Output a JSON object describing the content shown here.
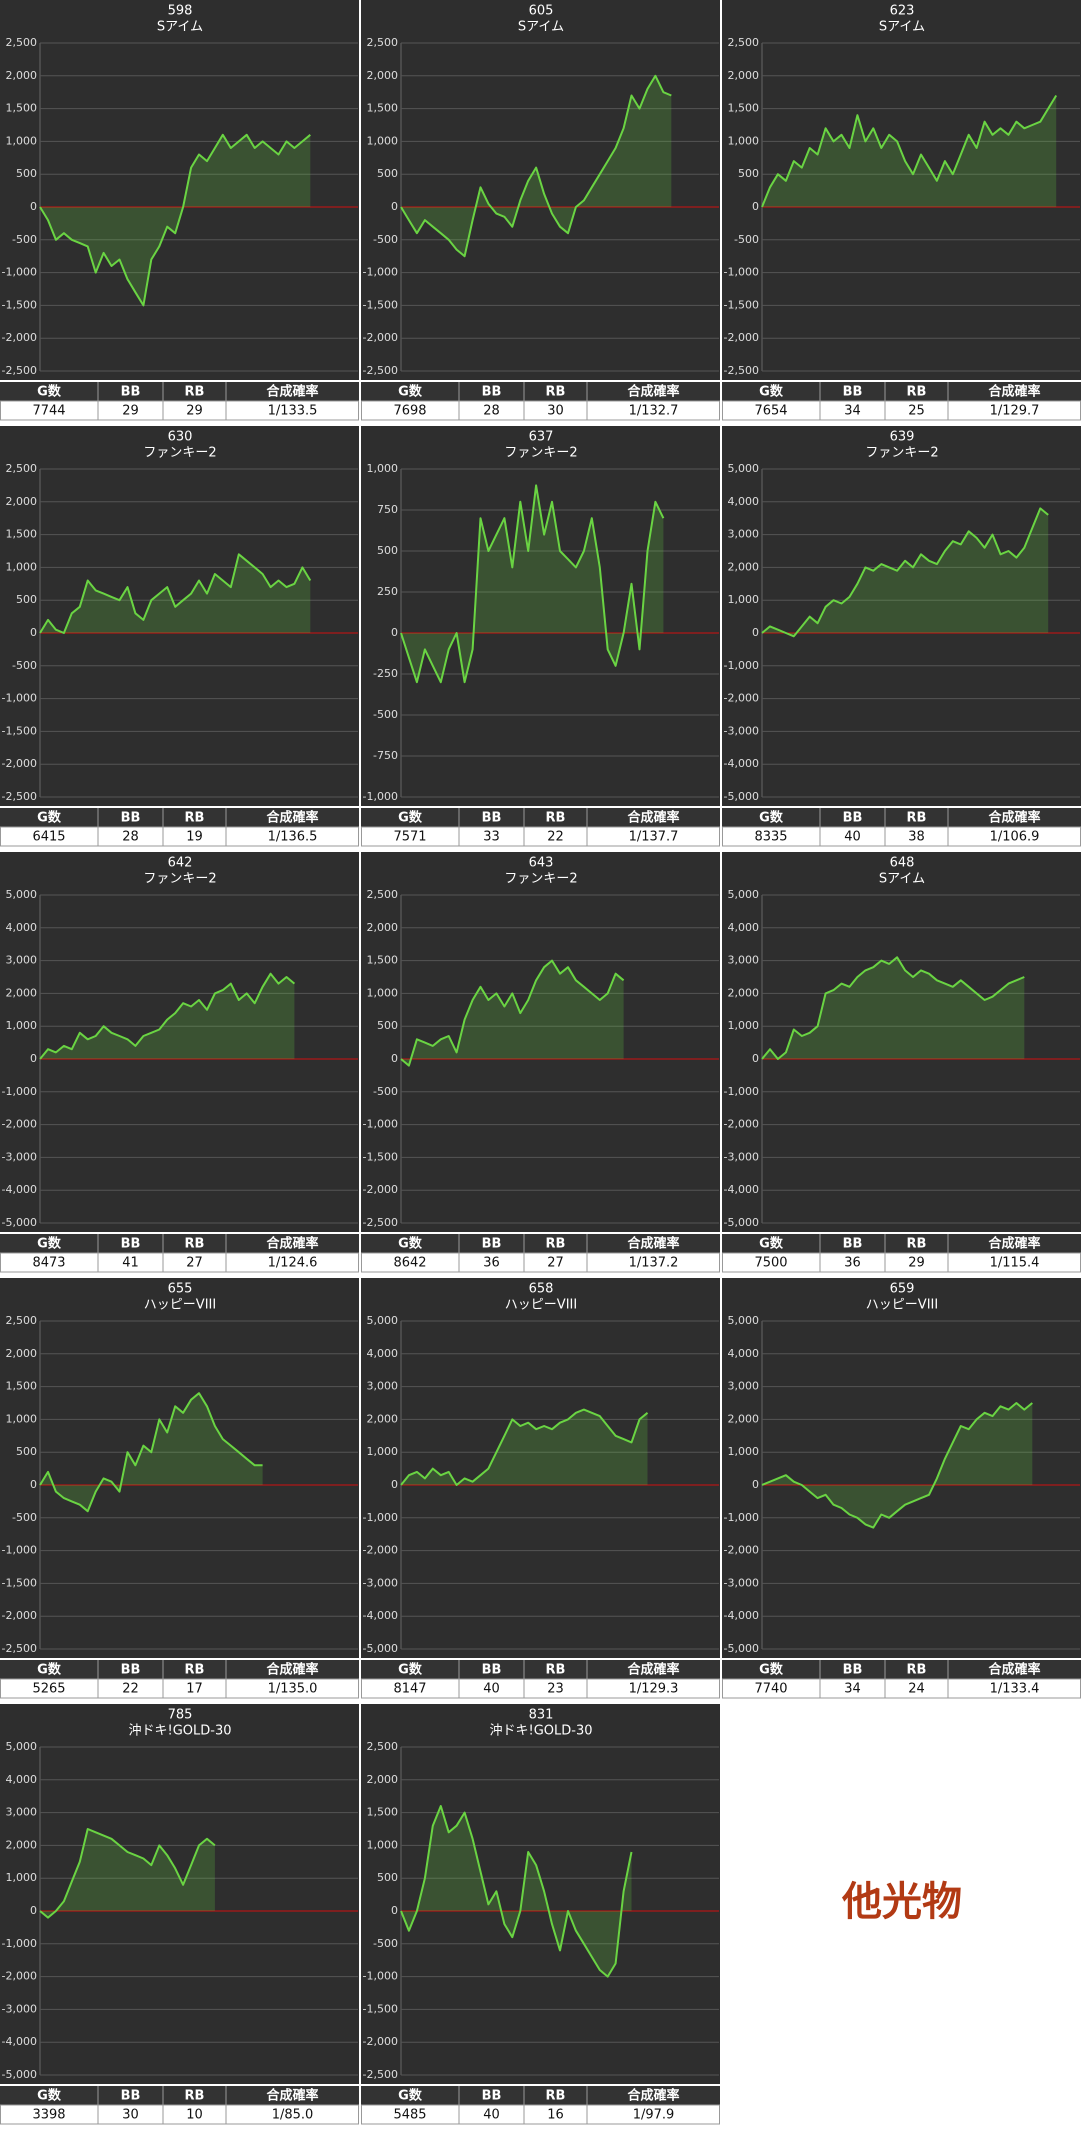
{
  "table_header": [
    "G数",
    "BB",
    "RB",
    "合成確率"
  ],
  "other_label": "他光物",
  "chart_data": [
    {
      "type": "line",
      "title": "598",
      "subtitle": "Sアイム",
      "color": "#6ad443",
      "ylim": [
        -2500,
        2500
      ],
      "yticks": [
        {
          "value": -2500,
          "label": "-2,500"
        },
        {
          "value": -2000,
          "label": "-2,000"
        },
        {
          "value": -1500,
          "label": "-1,500"
        },
        {
          "value": -1000,
          "label": "-1,000"
        },
        -500,
        0,
        500,
        {
          "value": 1000,
          "label": "1,000"
        },
        {
          "value": 1500,
          "label": "1,500"
        },
        {
          "value": 2000,
          "label": "2,000"
        },
        {
          "value": 2500,
          "label": "2,500"
        }
      ],
      "values": [
        0,
        -200,
        -500,
        -400,
        -500,
        -550,
        -600,
        -1000,
        -700,
        -900,
        -800,
        -1100,
        -1300,
        -1500,
        -800,
        -600,
        -300,
        -400,
        0,
        600,
        800,
        700,
        900,
        1100,
        900,
        1000,
        1100,
        900,
        1000,
        900,
        800,
        1000,
        900,
        1000,
        1100
      ],
      "stats": [
        7744,
        29,
        29,
        "1/133.5"
      ]
    },
    {
      "type": "line",
      "title": "605",
      "subtitle": "Sアイム",
      "color": "#6ad443",
      "ylim": [
        -2500,
        2500
      ],
      "yticks": [
        {
          "value": -2500,
          "label": "-2,500"
        },
        {
          "value": -2000,
          "label": "-2,000"
        },
        {
          "value": -1500,
          "label": "-1,500"
        },
        {
          "value": -1000,
          "label": "-1,000"
        },
        -500,
        0,
        500,
        {
          "value": 1000,
          "label": "1,000"
        },
        {
          "value": 1500,
          "label": "1,500"
        },
        {
          "value": 2000,
          "label": "2,000"
        },
        {
          "value": 2500,
          "label": "2,500"
        }
      ],
      "values": [
        0,
        -200,
        -400,
        -200,
        -300,
        -400,
        -500,
        -650,
        -750,
        -200,
        300,
        50,
        -100,
        -150,
        -300,
        100,
        400,
        600,
        200,
        -100,
        -300,
        -400,
        0,
        100,
        300,
        500,
        700,
        900,
        1200,
        1700,
        1500,
        1800,
        2000,
        1750,
        1700
      ],
      "stats": [
        7698,
        28,
        30,
        "1/132.7"
      ]
    },
    {
      "type": "line",
      "title": "623",
      "subtitle": "Sアイム",
      "color": "#6ad443",
      "ylim": [
        -2500,
        2500
      ],
      "yticks": [
        {
          "value": -2500,
          "label": "-2,500"
        },
        {
          "value": -2000,
          "label": "-2,000"
        },
        {
          "value": -1500,
          "label": "-1,500"
        },
        {
          "value": -1000,
          "label": "-1,000"
        },
        -500,
        0,
        500,
        {
          "value": 1000,
          "label": "1,000"
        },
        {
          "value": 1500,
          "label": "1,500"
        },
        {
          "value": 2000,
          "label": "2,000"
        },
        {
          "value": 2500,
          "label": "2,500"
        }
      ],
      "values": [
        0,
        300,
        500,
        400,
        700,
        600,
        900,
        800,
        1200,
        1000,
        1100,
        900,
        1400,
        1000,
        1200,
        900,
        1100,
        1000,
        700,
        500,
        800,
        600,
        400,
        700,
        500,
        800,
        1100,
        900,
        1300,
        1100,
        1200,
        1100,
        1300,
        1200,
        1250,
        1300,
        1500,
        1700
      ],
      "stats": [
        7654,
        34,
        25,
        "1/129.7"
      ]
    },
    {
      "type": "line",
      "title": "630",
      "subtitle": "ファンキー2",
      "color": "#6ad443",
      "ylim": [
        -2500,
        2500
      ],
      "yticks": [
        {
          "value": -2500,
          "label": "-2,500"
        },
        {
          "value": -2000,
          "label": "-2,000"
        },
        {
          "value": -1500,
          "label": "-1,500"
        },
        {
          "value": -1000,
          "label": "-1,000"
        },
        -500,
        0,
        500,
        {
          "value": 1000,
          "label": "1,000"
        },
        {
          "value": 1500,
          "label": "1,500"
        },
        {
          "value": 2000,
          "label": "2,000"
        },
        {
          "value": 2500,
          "label": "2,500"
        }
      ],
      "values": [
        0,
        200,
        50,
        0,
        300,
        400,
        800,
        650,
        600,
        550,
        500,
        700,
        300,
        200,
        500,
        600,
        700,
        400,
        500,
        600,
        800,
        600,
        900,
        800,
        700,
        1200,
        1100,
        1000,
        900,
        700,
        800,
        700,
        750,
        1000,
        800
      ],
      "stats": [
        6415,
        28,
        19,
        "1/136.5"
      ]
    },
    {
      "type": "line",
      "title": "637",
      "subtitle": "ファンキー2",
      "color": "#6ad443",
      "ylim": [
        -1000,
        1000
      ],
      "yticks": [
        {
          "value": -1000,
          "label": "-1,000"
        },
        -750,
        -500,
        -250,
        0,
        250,
        500,
        750,
        {
          "value": 1000,
          "label": "1,000"
        }
      ],
      "values": [
        0,
        -150,
        -300,
        -100,
        -200,
        -300,
        -100,
        0,
        -300,
        -100,
        700,
        500,
        600,
        700,
        400,
        800,
        500,
        900,
        600,
        800,
        500,
        450,
        400,
        500,
        700,
        400,
        -100,
        -200,
        0,
        300,
        -100,
        500,
        800,
        700
      ],
      "stats": [
        7571,
        33,
        22,
        "1/137.7"
      ]
    },
    {
      "type": "line",
      "title": "639",
      "subtitle": "ファンキー2",
      "color": "#6ad443",
      "ylim": [
        -5000,
        5000
      ],
      "yticks": [
        {
          "value": -5000,
          "label": "-5,000"
        },
        {
          "value": -4000,
          "label": "-4,000"
        },
        {
          "value": -3000,
          "label": "-3,000"
        },
        {
          "value": -2000,
          "label": "-2,000"
        },
        {
          "value": -1000,
          "label": "-1,000"
        },
        0,
        {
          "value": 1000,
          "label": "1,000"
        },
        {
          "value": 2000,
          "label": "2,000"
        },
        {
          "value": 3000,
          "label": "3,000"
        },
        {
          "value": 4000,
          "label": "4,000"
        },
        {
          "value": 5000,
          "label": "5,000"
        }
      ],
      "values": [
        0,
        200,
        100,
        0,
        -100,
        200,
        500,
        300,
        800,
        1000,
        900,
        1100,
        1500,
        2000,
        1900,
        2100,
        2000,
        1900,
        2200,
        2000,
        2400,
        2200,
        2100,
        2500,
        2800,
        2700,
        3100,
        2900,
        2600,
        3000,
        2400,
        2500,
        2300,
        2600,
        3200,
        3800,
        3600
      ],
      "stats": [
        8335,
        40,
        38,
        "1/106.9"
      ]
    },
    {
      "type": "line",
      "title": "642",
      "subtitle": "ファンキー2",
      "color": "#6ad443",
      "ylim": [
        -5000,
        5000
      ],
      "yticks": [
        {
          "value": -5000,
          "label": "-5,000"
        },
        {
          "value": -4000,
          "label": "-4,000"
        },
        {
          "value": -3000,
          "label": "-3,000"
        },
        {
          "value": -2000,
          "label": "-2,000"
        },
        {
          "value": -1000,
          "label": "-1,000"
        },
        0,
        {
          "value": 1000,
          "label": "1,000"
        },
        {
          "value": 2000,
          "label": "2,000"
        },
        {
          "value": 3000,
          "label": "3,000"
        },
        {
          "value": 4000,
          "label": "4,000"
        },
        {
          "value": 5000,
          "label": "5,000"
        }
      ],
      "values": [
        0,
        300,
        200,
        400,
        300,
        800,
        600,
        700,
        1000,
        800,
        700,
        600,
        400,
        700,
        800,
        900,
        1200,
        1400,
        1700,
        1600,
        1800,
        1500,
        2000,
        2100,
        2300,
        1800,
        2000,
        1700,
        2200,
        2600,
        2300,
        2500,
        2300
      ],
      "stats": [
        8473,
        41,
        27,
        "1/124.6"
      ]
    },
    {
      "type": "line",
      "title": "643",
      "subtitle": "ファンキー2",
      "color": "#6ad443",
      "ylim": [
        -2500,
        2500
      ],
      "yticks": [
        {
          "value": -2500,
          "label": "-2,500"
        },
        {
          "value": -2000,
          "label": "-2,000"
        },
        {
          "value": -1500,
          "label": "-1,500"
        },
        {
          "value": -1000,
          "label": "-1,000"
        },
        -500,
        0,
        500,
        {
          "value": 1000,
          "label": "1,000"
        },
        {
          "value": 1500,
          "label": "1,500"
        },
        {
          "value": 2000,
          "label": "2,000"
        },
        {
          "value": 2500,
          "label": "2,500"
        }
      ],
      "values": [
        0,
        -100,
        300,
        250,
        200,
        300,
        350,
        100,
        600,
        900,
        1100,
        900,
        1000,
        800,
        1000,
        700,
        900,
        1200,
        1400,
        1500,
        1300,
        1400,
        1200,
        1100,
        1000,
        900,
        1000,
        1300,
        1200
      ],
      "stats": [
        8642,
        36,
        27,
        "1/137.2"
      ]
    },
    {
      "type": "line",
      "title": "648",
      "subtitle": "Sアイム",
      "color": "#6ad443",
      "ylim": [
        -5000,
        5000
      ],
      "yticks": [
        {
          "value": -5000,
          "label": "-5,000"
        },
        {
          "value": -4000,
          "label": "-4,000"
        },
        {
          "value": -3000,
          "label": "-3,000"
        },
        {
          "value": -2000,
          "label": "-2,000"
        },
        {
          "value": -1000,
          "label": "-1,000"
        },
        0,
        {
          "value": 1000,
          "label": "1,000"
        },
        {
          "value": 2000,
          "label": "2,000"
        },
        {
          "value": 3000,
          "label": "3,000"
        },
        {
          "value": 4000,
          "label": "4,000"
        },
        {
          "value": 5000,
          "label": "5,000"
        }
      ],
      "values": [
        0,
        300,
        0,
        200,
        900,
        700,
        800,
        1000,
        2000,
        2100,
        2300,
        2200,
        2500,
        2700,
        2800,
        3000,
        2900,
        3100,
        2700,
        2500,
        2700,
        2600,
        2400,
        2300,
        2200,
        2400,
        2200,
        2000,
        1800,
        1900,
        2100,
        2300,
        2400,
        2500
      ],
      "stats": [
        7500,
        36,
        29,
        "1/115.4"
      ]
    },
    {
      "type": "line",
      "title": "655",
      "subtitle": "ハッピーVIII",
      "color": "#6ad443",
      "ylim": [
        -2500,
        2500
      ],
      "yticks": [
        {
          "value": -2500,
          "label": "-2,500"
        },
        {
          "value": -2000,
          "label": "-2,000"
        },
        {
          "value": -1500,
          "label": "-1,500"
        },
        {
          "value": -1000,
          "label": "-1,000"
        },
        -500,
        0,
        500,
        {
          "value": 1000,
          "label": "1,000"
        },
        {
          "value": 1500,
          "label": "1,500"
        },
        {
          "value": 2000,
          "label": "2,000"
        },
        {
          "value": 2500,
          "label": "2,500"
        }
      ],
      "values": [
        0,
        200,
        -100,
        -200,
        -250,
        -300,
        -400,
        -100,
        100,
        50,
        -100,
        500,
        300,
        600,
        500,
        1000,
        800,
        1200,
        1100,
        1300,
        1400,
        1200,
        900,
        700,
        600,
        500,
        400,
        300,
        300
      ],
      "stats": [
        5265,
        22,
        17,
        "1/135.0"
      ]
    },
    {
      "type": "line",
      "title": "658",
      "subtitle": "ハッピーVIII",
      "color": "#6ad443",
      "ylim": [
        -5000,
        5000
      ],
      "yticks": [
        {
          "value": -5000,
          "label": "-5,000"
        },
        {
          "value": -4000,
          "label": "-4,000"
        },
        {
          "value": -3000,
          "label": "-3,000"
        },
        {
          "value": -2000,
          "label": "-2,000"
        },
        {
          "value": -1000,
          "label": "-1,000"
        },
        0,
        {
          "value": 1000,
          "label": "1,000"
        },
        {
          "value": 2000,
          "label": "2,000"
        },
        {
          "value": 3000,
          "label": "3,000"
        },
        {
          "value": 4000,
          "label": "4,000"
        },
        {
          "value": 5000,
          "label": "5,000"
        }
      ],
      "values": [
        0,
        300,
        400,
        200,
        500,
        300,
        400,
        0,
        200,
        100,
        300,
        500,
        1000,
        1500,
        2000,
        1800,
        1900,
        1700,
        1800,
        1700,
        1900,
        2000,
        2200,
        2300,
        2200,
        2100,
        1800,
        1500,
        1400,
        1300,
        2000,
        2200
      ],
      "stats": [
        8147,
        40,
        23,
        "1/129.3"
      ]
    },
    {
      "type": "line",
      "title": "659",
      "subtitle": "ハッピーVIII",
      "color": "#6ad443",
      "ylim": [
        -5000,
        5000
      ],
      "yticks": [
        {
          "value": -5000,
          "label": "-5,000"
        },
        {
          "value": -4000,
          "label": "-4,000"
        },
        {
          "value": -3000,
          "label": "-3,000"
        },
        {
          "value": -2000,
          "label": "-2,000"
        },
        {
          "value": -1000,
          "label": "-1,000"
        },
        0,
        {
          "value": 1000,
          "label": "1,000"
        },
        {
          "value": 2000,
          "label": "2,000"
        },
        {
          "value": 3000,
          "label": "3,000"
        },
        {
          "value": 4000,
          "label": "4,000"
        },
        {
          "value": 5000,
          "label": "5,000"
        }
      ],
      "values": [
        0,
        100,
        200,
        300,
        100,
        0,
        -200,
        -400,
        -300,
        -600,
        -700,
        -900,
        -1000,
        -1200,
        -1300,
        -900,
        -1000,
        -800,
        -600,
        -500,
        -400,
        -300,
        200,
        800,
        1300,
        1800,
        1700,
        2000,
        2200,
        2100,
        2400,
        2300,
        2500,
        2300,
        2500
      ],
      "stats": [
        7740,
        34,
        24,
        "1/133.4"
      ]
    },
    {
      "type": "line",
      "title": "785",
      "subtitle": "沖ドキ!GOLD-30",
      "color": "#6ad443",
      "ylim": [
        -5000,
        5000
      ],
      "yticks": [
        {
          "value": -5000,
          "label": "-5,000"
        },
        {
          "value": -4000,
          "label": "-4,000"
        },
        {
          "value": -3000,
          "label": "-3,000"
        },
        {
          "value": -2000,
          "label": "-2,000"
        },
        {
          "value": -1000,
          "label": "-1,000"
        },
        0,
        {
          "value": 1000,
          "label": "1,000"
        },
        {
          "value": 2000,
          "label": "2,000"
        },
        {
          "value": 3000,
          "label": "3,000"
        },
        {
          "value": 4000,
          "label": "4,000"
        },
        {
          "value": 5000,
          "label": "5,000"
        }
      ],
      "values": [
        0,
        -200,
        0,
        300,
        900,
        1500,
        2500,
        2400,
        2300,
        2200,
        2000,
        1800,
        1700,
        1600,
        1400,
        2000,
        1700,
        1300,
        800,
        1400,
        2000,
        2200,
        2000
      ],
      "stats": [
        3398,
        30,
        10,
        "1/85.0"
      ]
    },
    {
      "type": "line",
      "title": "831",
      "subtitle": "沖ドキ!GOLD-30",
      "color": "#6ad443",
      "ylim": [
        -2500,
        2500
      ],
      "yticks": [
        {
          "value": -2500,
          "label": "-2,500"
        },
        {
          "value": -2000,
          "label": "-2,000"
        },
        {
          "value": -1500,
          "label": "-1,500"
        },
        {
          "value": -1000,
          "label": "-1,000"
        },
        -500,
        0,
        500,
        {
          "value": 1000,
          "label": "1,000"
        },
        {
          "value": 1500,
          "label": "1,500"
        },
        {
          "value": 2000,
          "label": "2,000"
        },
        {
          "value": 2500,
          "label": "2,500"
        }
      ],
      "values": [
        0,
        -300,
        0,
        500,
        1300,
        1600,
        1200,
        1300,
        1500,
        1100,
        600,
        100,
        300,
        -200,
        -400,
        0,
        900,
        700,
        300,
        -200,
        -600,
        0,
        -300,
        -500,
        -700,
        -900,
        -1000,
        -800,
        300,
        900
      ],
      "stats": [
        5485,
        40,
        16,
        "1/97.9"
      ]
    }
  ]
}
